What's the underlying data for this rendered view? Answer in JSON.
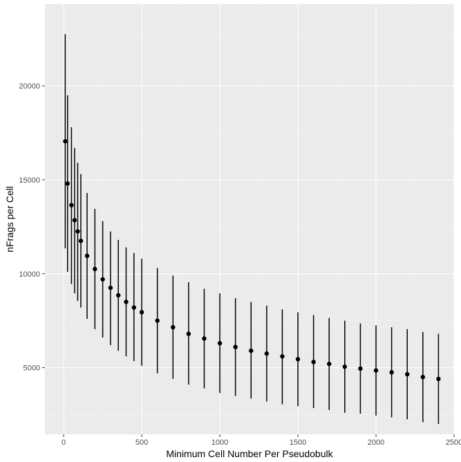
{
  "chart_data": {
    "type": "scatter",
    "title": "",
    "xlabel": "Minimum Cell Number Per Pseudobulk",
    "ylabel": "nFrags per Cell",
    "xlim": [
      -120,
      2500
    ],
    "ylim": [
      1450,
      24350
    ],
    "x_ticks": [
      0,
      500,
      1000,
      1500,
      2000,
      2500
    ],
    "x_tick_labels": [
      "0",
      "500",
      "1000",
      "1500",
      "2000",
      "2500"
    ],
    "y_ticks": [
      5000,
      10000,
      15000,
      20000
    ],
    "y_tick_labels": [
      "5000",
      "10000",
      "15000",
      "20000"
    ],
    "grid": true,
    "theme_colors": {
      "panel": "#ebebeb",
      "grid_major": "#ffffff",
      "grid_minor": "#f5f5f5",
      "marks": "#000000",
      "tick_text": "#4d4d4d"
    },
    "points": [
      {
        "x": 10,
        "y": 17050,
        "ymin": 11350,
        "ymax": 22750
      },
      {
        "x": 25,
        "y": 14800,
        "ymin": 10100,
        "ymax": 19500
      },
      {
        "x": 50,
        "y": 13650,
        "ymin": 9450,
        "ymax": 17800
      },
      {
        "x": 70,
        "y": 12850,
        "ymin": 8950,
        "ymax": 16700
      },
      {
        "x": 90,
        "y": 12250,
        "ymin": 8550,
        "ymax": 15900
      },
      {
        "x": 110,
        "y": 11750,
        "ymin": 8200,
        "ymax": 15300
      },
      {
        "x": 150,
        "y": 10950,
        "ymin": 7600,
        "ymax": 14300
      },
      {
        "x": 200,
        "y": 10250,
        "ymin": 7050,
        "ymax": 13450
      },
      {
        "x": 250,
        "y": 9700,
        "ymin": 6600,
        "ymax": 12800
      },
      {
        "x": 300,
        "y": 9250,
        "ymin": 6200,
        "ymax": 12250
      },
      {
        "x": 350,
        "y": 8850,
        "ymin": 5900,
        "ymax": 11800
      },
      {
        "x": 400,
        "y": 8500,
        "ymin": 5600,
        "ymax": 11400
      },
      {
        "x": 450,
        "y": 8200,
        "ymin": 5350,
        "ymax": 11100
      },
      {
        "x": 500,
        "y": 7950,
        "ymin": 5100,
        "ymax": 10800
      },
      {
        "x": 600,
        "y": 7500,
        "ymin": 4700,
        "ymax": 10300
      },
      {
        "x": 700,
        "y": 7150,
        "ymin": 4400,
        "ymax": 9900
      },
      {
        "x": 800,
        "y": 6800,
        "ymin": 4100,
        "ymax": 9550
      },
      {
        "x": 900,
        "y": 6550,
        "ymin": 3900,
        "ymax": 9200
      },
      {
        "x": 1000,
        "y": 6300,
        "ymin": 3650,
        "ymax": 8950
      },
      {
        "x": 1100,
        "y": 6100,
        "ymin": 3500,
        "ymax": 8700
      },
      {
        "x": 1200,
        "y": 5900,
        "ymin": 3350,
        "ymax": 8500
      },
      {
        "x": 1300,
        "y": 5750,
        "ymin": 3200,
        "ymax": 8300
      },
      {
        "x": 1400,
        "y": 5600,
        "ymin": 3050,
        "ymax": 8100
      },
      {
        "x": 1500,
        "y": 5450,
        "ymin": 2950,
        "ymax": 7950
      },
      {
        "x": 1600,
        "y": 5300,
        "ymin": 2850,
        "ymax": 7800
      },
      {
        "x": 1700,
        "y": 5200,
        "ymin": 2750,
        "ymax": 7650
      },
      {
        "x": 1800,
        "y": 5050,
        "ymin": 2600,
        "ymax": 7500
      },
      {
        "x": 1900,
        "y": 4950,
        "ymin": 2550,
        "ymax": 7350
      },
      {
        "x": 2000,
        "y": 4850,
        "ymin": 2450,
        "ymax": 7250
      },
      {
        "x": 2100,
        "y": 4750,
        "ymin": 2350,
        "ymax": 7150
      },
      {
        "x": 2200,
        "y": 4650,
        "ymin": 2250,
        "ymax": 7050
      },
      {
        "x": 2300,
        "y": 4500,
        "ymin": 2100,
        "ymax": 6900
      },
      {
        "x": 2400,
        "y": 4400,
        "ymin": 2000,
        "ymax": 6800
      }
    ]
  }
}
